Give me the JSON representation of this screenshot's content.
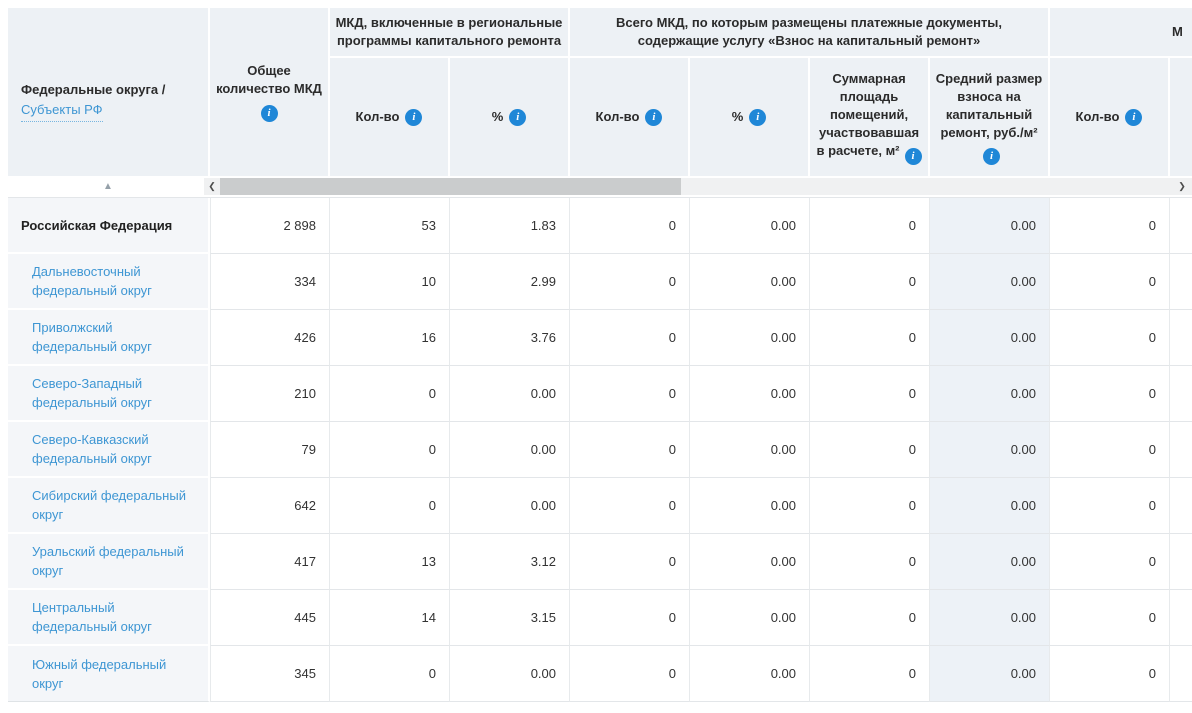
{
  "table": {
    "region_header": {
      "title": "Федеральные округа /",
      "link": "Субъекты РФ"
    },
    "total_header": "Общее количество МКД",
    "groups": [
      "МКД, включенные в региональные программы капитального ремонта",
      "Всего МКД, по которым размещены платежные документы, содержащие услугу «Взнос на капитальный ремонт»",
      "М"
    ],
    "subcols": [
      "Кол-во",
      "%",
      "Кол-во",
      "%",
      "Суммарная площадь помещений, участвовавшая в расчете, м²",
      "Средний размер взноса на капитальный ремонт, руб./м²",
      "Кол-во"
    ],
    "info_icon_glyph": "i",
    "sort_icon": "▲",
    "scroll": {
      "left": "❮",
      "right": "❯"
    },
    "colors": {
      "header_bg": "#edf1f5",
      "frozen_cell_bg": "#f4f6f9",
      "highlight_col_bg": "#edf2f7",
      "link": "#3e96d3",
      "info_icon": "#1f87d7"
    }
  },
  "rows": [
    {
      "name": "Российская Федерация",
      "is_total": true,
      "values": [
        "2 898",
        "53",
        "1.83",
        "0",
        "0.00",
        "0",
        "0.00",
        "0"
      ]
    },
    {
      "name": "Дальневосточный федеральный округ",
      "is_total": false,
      "values": [
        "334",
        "10",
        "2.99",
        "0",
        "0.00",
        "0",
        "0.00",
        "0"
      ]
    },
    {
      "name": "Приволжский федеральный округ",
      "is_total": false,
      "values": [
        "426",
        "16",
        "3.76",
        "0",
        "0.00",
        "0",
        "0.00",
        "0"
      ]
    },
    {
      "name": "Северо-Западный федеральный округ",
      "is_total": false,
      "values": [
        "210",
        "0",
        "0.00",
        "0",
        "0.00",
        "0",
        "0.00",
        "0"
      ]
    },
    {
      "name": "Северо-Кавказский федеральный округ",
      "is_total": false,
      "values": [
        "79",
        "0",
        "0.00",
        "0",
        "0.00",
        "0",
        "0.00",
        "0"
      ]
    },
    {
      "name": "Сибирский федеральный округ",
      "is_total": false,
      "values": [
        "642",
        "0",
        "0.00",
        "0",
        "0.00",
        "0",
        "0.00",
        "0"
      ]
    },
    {
      "name": "Уральский федеральный округ",
      "is_total": false,
      "values": [
        "417",
        "13",
        "3.12",
        "0",
        "0.00",
        "0",
        "0.00",
        "0"
      ]
    },
    {
      "name": "Центральный федеральный округ",
      "is_total": false,
      "values": [
        "445",
        "14",
        "3.15",
        "0",
        "0.00",
        "0",
        "0.00",
        "0"
      ]
    },
    {
      "name": "Южный федеральный округ",
      "is_total": false,
      "values": [
        "345",
        "0",
        "0.00",
        "0",
        "0.00",
        "0",
        "0.00",
        "0"
      ]
    }
  ]
}
